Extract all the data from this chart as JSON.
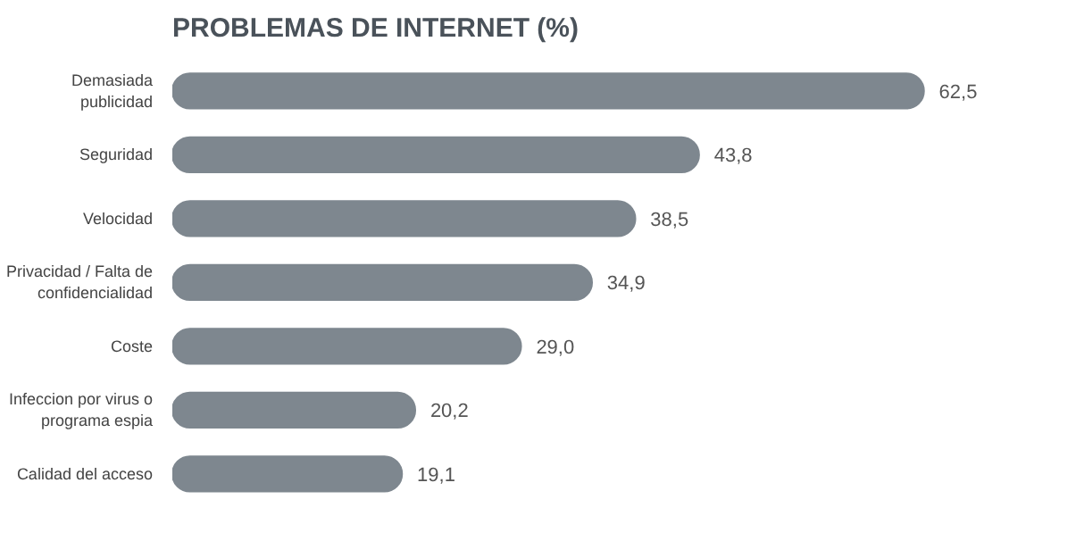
{
  "chart_data": {
    "type": "bar",
    "orientation": "horizontal",
    "title": "PROBLEMAS DE INTERNET (%)",
    "categories": [
      "Demasiada\npublicidad",
      "Seguridad",
      "Velocidad",
      "Privacidad / Falta de\nconfidencialidad",
      "Coste",
      "Infeccion por virus o\nprograma espia",
      "Calidad del acceso"
    ],
    "values": [
      62.5,
      43.8,
      38.5,
      34.9,
      29.0,
      20.2,
      19.1
    ],
    "value_labels": [
      "62,5",
      "43,8",
      "38,5",
      "34,9",
      "29,0",
      "20,2",
      "19,1"
    ],
    "color": "#7e878f"
  }
}
